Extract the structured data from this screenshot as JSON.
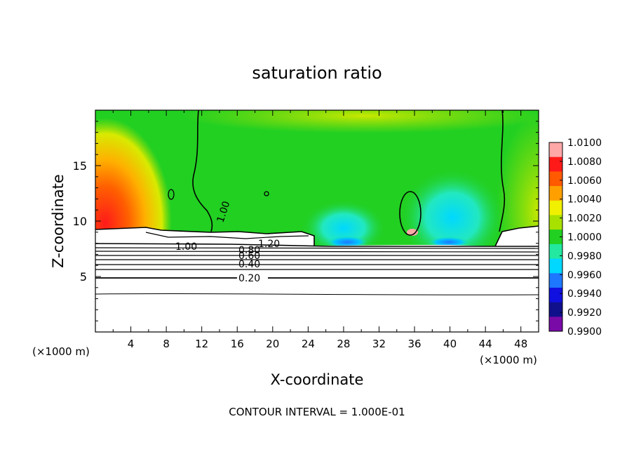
{
  "chart_data": {
    "type": "heatmap",
    "title": "saturation ratio",
    "xlabel": "X-coordinate",
    "ylabel": "Z-coordinate",
    "x_unit_left": "(×1000 m)",
    "x_unit_right": "(×1000 m)",
    "xlim": [
      0,
      50
    ],
    "ylim": [
      0,
      20
    ],
    "x_ticks": [
      "4",
      "8",
      "12",
      "16",
      "20",
      "24",
      "28",
      "32",
      "36",
      "40",
      "44",
      "48"
    ],
    "y_ticks": [
      "5",
      "10",
      "15"
    ],
    "colorbar": {
      "min": 0.99,
      "max": 1.01,
      "labels": [
        "1.0100",
        "1.0080",
        "1.0060",
        "1.0040",
        "1.0020",
        "1.0000",
        "0.9980",
        "0.9960",
        "0.9940",
        "0.9920",
        "0.9900"
      ],
      "colors": [
        "#ffa8a8",
        "#ff1a1a",
        "#ff5a00",
        "#ffa000",
        "#f0f000",
        "#a8e000",
        "#22d022",
        "#22e8a0",
        "#00d8ff",
        "#1e78ff",
        "#1010e0",
        "#10108c",
        "#7a0aa8"
      ]
    },
    "contour_labels": [
      "1.00",
      "1.00",
      "1.20",
      "0.80",
      "0.60",
      "0.40",
      "0.20"
    ],
    "footer": "CONTOUR INTERVAL = 1.000E-01"
  }
}
